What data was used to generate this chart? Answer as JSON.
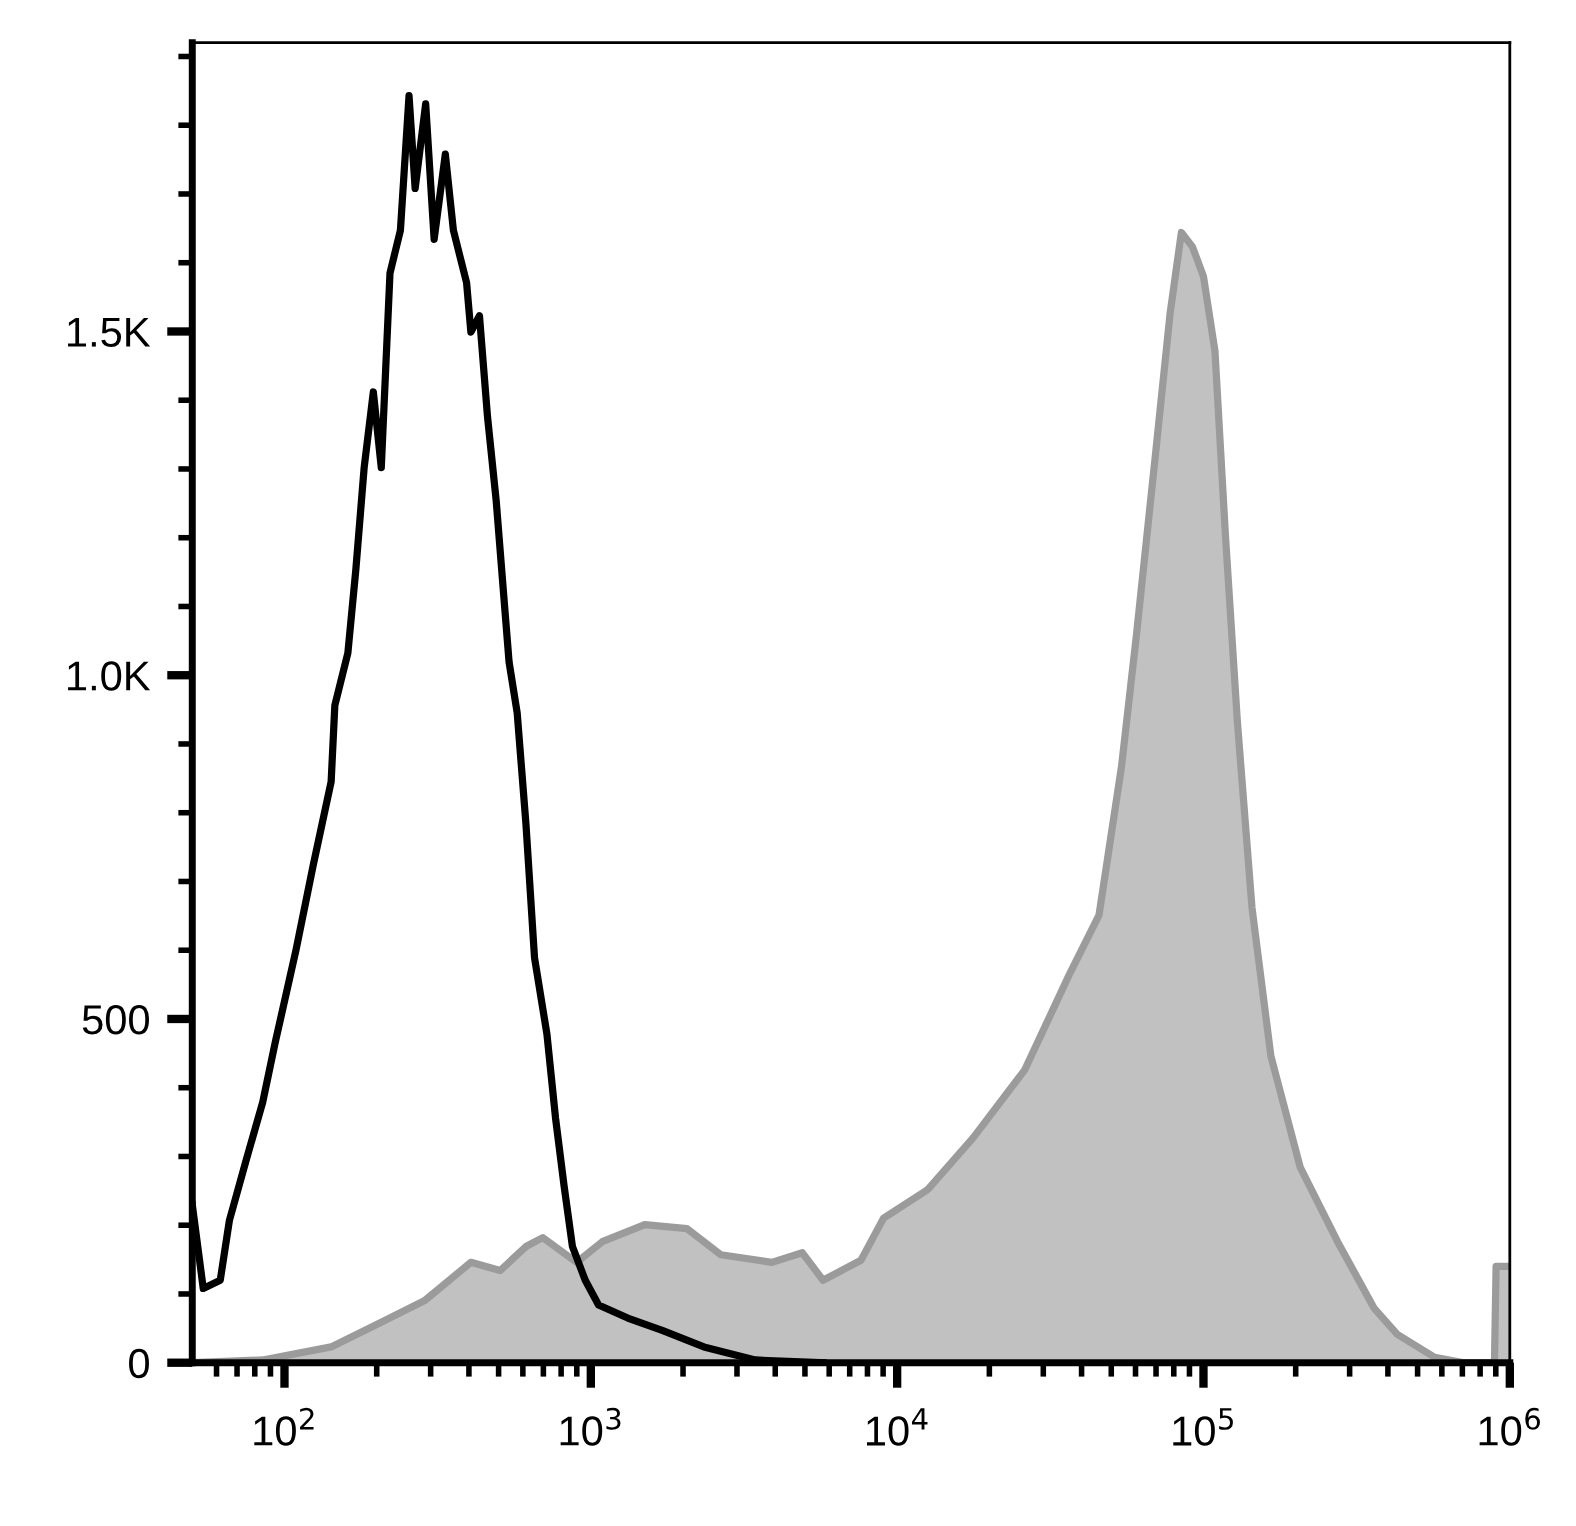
{
  "chart_data": {
    "type": "line",
    "log": "x",
    "grid": false,
    "legend": false,
    "xlim": [
      50,
      1000000
    ],
    "ylim": [
      0,
      1920
    ],
    "xticks": [
      {
        "value": 60,
        "label": null
      },
      {
        "value": 70,
        "label": null
      },
      {
        "value": 80,
        "label": null
      },
      {
        "value": 90,
        "label": null
      },
      {
        "value": 100,
        "label": "10$^{2}$"
      },
      {
        "value": 200,
        "label": null
      },
      {
        "value": 300,
        "label": null
      },
      {
        "value": 400,
        "label": null
      },
      {
        "value": 500,
        "label": null
      },
      {
        "value": 600,
        "label": null
      },
      {
        "value": 700,
        "label": null
      },
      {
        "value": 800,
        "label": null
      },
      {
        "value": 900,
        "label": null
      },
      {
        "value": 1000,
        "label": "10$^{3}$"
      },
      {
        "value": 2000,
        "label": null
      },
      {
        "value": 3000,
        "label": null
      },
      {
        "value": 4000,
        "label": null
      },
      {
        "value": 5000,
        "label": null
      },
      {
        "value": 6000,
        "label": null
      },
      {
        "value": 7000,
        "label": null
      },
      {
        "value": 8000,
        "label": null
      },
      {
        "value": 9000,
        "label": null
      },
      {
        "value": 10000,
        "label": "10$^{4}$"
      },
      {
        "value": 20000,
        "label": null
      },
      {
        "value": 30000,
        "label": null
      },
      {
        "value": 40000,
        "label": null
      },
      {
        "value": 50000,
        "label": null
      },
      {
        "value": 60000,
        "label": null
      },
      {
        "value": 70000,
        "label": null
      },
      {
        "value": 80000,
        "label": null
      },
      {
        "value": 90000,
        "label": null
      },
      {
        "value": 100000,
        "label": "10$^{5}$"
      },
      {
        "value": 200000,
        "label": null
      },
      {
        "value": 300000,
        "label": null
      },
      {
        "value": 400000,
        "label": null
      },
      {
        "value": 500000,
        "label": null
      },
      {
        "value": 600000,
        "label": null
      },
      {
        "value": 700000,
        "label": null
      },
      {
        "value": 800000,
        "label": null
      },
      {
        "value": 900000,
        "label": null
      },
      {
        "value": 1000000,
        "label": "10$^{6}$"
      }
    ],
    "yticks": [
      0,
      {
        "value": 100,
        "label": null
      },
      {
        "value": 200,
        "label": null
      },
      {
        "value": 300,
        "label": null
      },
      {
        "value": 400,
        "label": null
      },
      500,
      {
        "value": 600,
        "label": null
      },
      {
        "value": 700,
        "label": null
      },
      {
        "value": 800,
        "label": null
      },
      {
        "value": 900,
        "label": null
      },
      {
        "value": 1000,
        "label": "1.0K"
      },
      {
        "value": 1100,
        "label": null
      },
      {
        "value": 1200,
        "label": null
      },
      {
        "value": 1300,
        "label": null
      },
      {
        "value": 1400,
        "label": null
      },
      {
        "value": 1500,
        "label": "1.5K"
      },
      {
        "value": 1600,
        "label": null
      },
      {
        "value": 1700,
        "label": null
      },
      {
        "value": 1800,
        "label": null
      },
      {
        "value": 1900,
        "label": null
      }
    ],
    "series": [
      {
        "type": "area",
        "color": "#9b9b9b",
        "x": [
          50,
          85,
          142,
          207,
          286,
          406,
          506,
          614,
          697,
          899,
          1090,
          1500,
          2060,
          2660,
          3900,
          4900,
          5730,
          7620,
          9020,
          12600,
          17700,
          26100,
          36600,
          45600,
          54000,
          60500,
          69700,
          77800,
          84700,
          92100,
          100000,
          109000,
          118000,
          129000,
          144000,
          166000,
          207000,
          274000,
          361000,
          430000,
          568000,
          708000,
          891000,
          902000,
          1000000
        ],
        "values": [
          0,
          4,
          23,
          59,
          90,
          146,
          134,
          169,
          182,
          146,
          176,
          201,
          195,
          157,
          146,
          160,
          120,
          149,
          210,
          252,
          327,
          426,
          566,
          651,
          867,
          1061,
          1321,
          1526,
          1644,
          1623,
          1580,
          1472,
          1202,
          933,
          662,
          446,
          284,
          176,
          79,
          41,
          8,
          0,
          0,
          140,
          140
        ]
      },
      {
        "color": "#000000",
        "x": [
          50,
          54.3,
          61.7,
          66.1,
          74.8,
          84.9,
          93.3,
          109,
          124,
          142,
          146,
          161,
          171,
          182,
          195,
          207,
          221,
          239,
          255,
          267,
          289,
          308,
          335,
          356,
          393,
          406,
          433,
          460,
          491,
          522,
          541,
          575,
          614,
          655,
          719,
          767,
          818,
          871,
          959,
          1060,
          1320,
          1710,
          2340,
          3440,
          5730
        ],
        "values": [
          230,
          108,
          120,
          207,
          293,
          379,
          466,
          600,
          723,
          845,
          956,
          1032,
          1154,
          1302,
          1412,
          1302,
          1585,
          1647,
          1843,
          1708,
          1831,
          1634,
          1758,
          1647,
          1571,
          1499,
          1523,
          1376,
          1254,
          1105,
          1019,
          945,
          784,
          589,
          478,
          356,
          257,
          169,
          120,
          84,
          65,
          47,
          23,
          4,
          0
        ]
      }
    ]
  }
}
